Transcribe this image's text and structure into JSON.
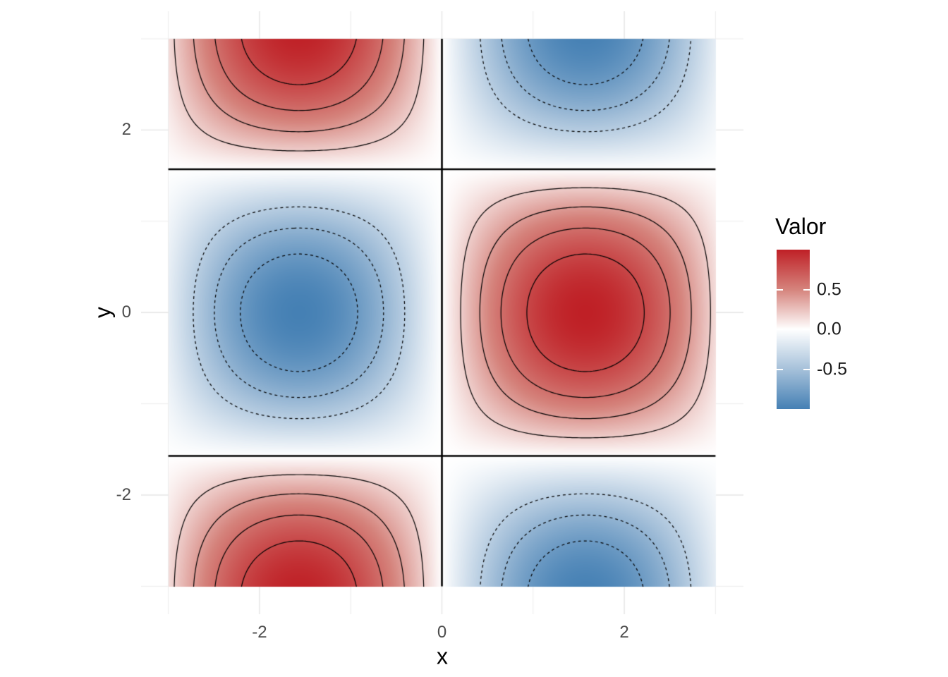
{
  "chart_data": {
    "type": "heatmap",
    "subtype": "filled-contour-with-lines",
    "function_expr": "Math.sin(x)*Math.cos(y)",
    "x_domain": [
      -3,
      3
    ],
    "y_domain": [
      -3,
      3
    ],
    "xlabel": "x",
    "ylabel": "y",
    "x_ticks": [
      {
        "value": -2,
        "label": "-2"
      },
      {
        "value": 0,
        "label": "0"
      },
      {
        "value": 2,
        "label": "2"
      }
    ],
    "y_ticks": [
      {
        "value": 2,
        "label": "2"
      },
      {
        "value": 0,
        "label": "0"
      },
      {
        "value": -2,
        "label": "-2"
      }
    ],
    "grid": {
      "major_breaks": [
        -2,
        0,
        2
      ],
      "minor_breaks": [
        -3,
        -1,
        1,
        3
      ],
      "major_color": "#e4e4e4",
      "minor_color": "#ececec",
      "major_width": 1.4,
      "minor_width": 1.0
    },
    "palette": {
      "stops": [
        {
          "value": -1.0,
          "color": "#4580b4"
        },
        {
          "value": -0.5,
          "color": "#a6c1da"
        },
        {
          "value": 0.0,
          "color": "#ffffff"
        },
        {
          "value": 0.5,
          "color": "#d5837c"
        },
        {
          "value": 1.0,
          "color": "#bf2026"
        }
      ]
    },
    "contours": {
      "solid_levels": [
        0.2,
        0.4,
        0.6,
        0.8
      ],
      "dashed_levels": [
        -0.4,
        -0.6,
        -0.8
      ],
      "dash_pattern": [
        4,
        4
      ],
      "line_color": "#000000",
      "line_width": 1.2,
      "zero_lines": {
        "vertical_x": [
          0
        ],
        "horizontal_y": [
          1.5708,
          -1.5708
        ],
        "color": "#000000",
        "width": 2.6
      }
    },
    "legend": {
      "title": "Valor",
      "range": [
        -1,
        1
      ],
      "ticks": [
        {
          "value": 0.5,
          "label": "0.5"
        },
        {
          "value": 0.0,
          "label": "0.0"
        },
        {
          "value": -0.5,
          "label": "-0.5"
        }
      ],
      "tick_mark_color": "#ffffff"
    },
    "text_colors": {
      "axis_tick": "#4d4d4d",
      "axis_title": "#000000",
      "legend_label": "#1a1a1a",
      "legend_title": "#000000"
    }
  }
}
